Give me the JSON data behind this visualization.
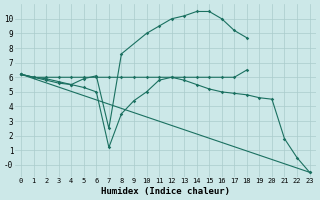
{
  "xlabel": "Humidex (Indice chaleur)",
  "bg_color": "#cce8e8",
  "grid_color": "#aacccc",
  "line_color": "#1a7060",
  "xlim": [
    -0.5,
    23.5
  ],
  "ylim": [
    -0.8,
    11.0
  ],
  "xticks": [
    0,
    1,
    2,
    3,
    4,
    5,
    6,
    7,
    8,
    9,
    10,
    11,
    12,
    13,
    14,
    15,
    16,
    17,
    18,
    19,
    20,
    21,
    22,
    23
  ],
  "yticks": [
    0,
    1,
    2,
    3,
    4,
    5,
    6,
    7,
    8,
    9,
    10
  ],
  "ytick_labels": [
    "-0",
    "1",
    "2",
    "3",
    "4",
    "5",
    "6",
    "7",
    "8",
    "9",
    "10"
  ],
  "series": [
    {
      "x": [
        0,
        1,
        2,
        3,
        4,
        5,
        6,
        7,
        8,
        10,
        11,
        12,
        13,
        14,
        15,
        16,
        17,
        18
      ],
      "y": [
        6.2,
        6.0,
        5.9,
        5.7,
        5.5,
        5.9,
        6.1,
        2.5,
        7.6,
        9.0,
        9.5,
        10.0,
        10.2,
        10.5,
        10.5,
        10.0,
        9.2,
        8.7
      ]
    },
    {
      "x": [
        0,
        1,
        2,
        3,
        4,
        5,
        6,
        7,
        8,
        9,
        10,
        11,
        12,
        13,
        14,
        15,
        16,
        17,
        18
      ],
      "y": [
        6.2,
        6.0,
        6.0,
        6.0,
        6.0,
        6.0,
        6.0,
        6.0,
        6.0,
        6.0,
        6.0,
        6.0,
        6.0,
        6.0,
        6.0,
        6.0,
        6.0,
        6.0,
        6.5
      ]
    },
    {
      "x": [
        0,
        1,
        2,
        3,
        4,
        5,
        6,
        7,
        8,
        9,
        10,
        11,
        12,
        13,
        14,
        15,
        16,
        17,
        18,
        19,
        20,
        21,
        22,
        23
      ],
      "y": [
        6.2,
        6.0,
        5.8,
        5.6,
        5.5,
        5.3,
        5.0,
        1.2,
        3.5,
        4.4,
        5.0,
        5.8,
        6.0,
        5.8,
        5.5,
        5.2,
        5.0,
        4.9,
        4.8,
        4.6,
        4.5,
        1.8,
        0.5,
        -0.5
      ]
    },
    {
      "comment": "Straight diagonal: x=0 y=6.2 to x=23 y=-0.5",
      "x": [
        0,
        23
      ],
      "y": [
        6.2,
        -0.5
      ]
    }
  ]
}
